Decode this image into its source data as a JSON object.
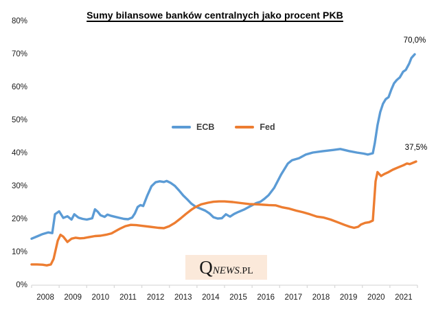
{
  "chart_data": {
    "type": "line",
    "title": "Sumy bilansowe banków centralnych jako procent PKB",
    "xlabel": "",
    "ylabel": "",
    "x_range": [
      2008,
      2022
    ],
    "ylim": [
      0,
      80
    ],
    "grid": false,
    "legend_position": "center-left",
    "axis_color": "#d9d9d9",
    "y_ticks": [
      {
        "value": 0,
        "label": "0%"
      },
      {
        "value": 10,
        "label": "10%"
      },
      {
        "value": 20,
        "label": "20%"
      },
      {
        "value": 30,
        "label": "30%"
      },
      {
        "value": 40,
        "label": "40%"
      },
      {
        "value": 50,
        "label": "50%"
      },
      {
        "value": 60,
        "label": "60%"
      },
      {
        "value": 70,
        "label": "70%"
      },
      {
        "value": 80,
        "label": "80%"
      }
    ],
    "x_tick_labels": [
      "2008",
      "2009",
      "2010",
      "2011",
      "2012",
      "2013",
      "2014",
      "2015",
      "2016",
      "2017",
      "2018",
      "2019",
      "2020",
      "2021"
    ],
    "series": [
      {
        "name": "ECB",
        "color": "#5b9bd5",
        "end_label": "70,0%",
        "points": [
          [
            2008.0,
            14.1
          ],
          [
            2008.2,
            14.8
          ],
          [
            2008.4,
            15.5
          ],
          [
            2008.6,
            16.0
          ],
          [
            2008.75,
            15.8
          ],
          [
            2008.85,
            21.5
          ],
          [
            2009.0,
            22.4
          ],
          [
            2009.15,
            20.4
          ],
          [
            2009.3,
            20.9
          ],
          [
            2009.45,
            19.9
          ],
          [
            2009.55,
            21.5
          ],
          [
            2009.7,
            20.5
          ],
          [
            2009.85,
            20.1
          ],
          [
            2010.0,
            19.9
          ],
          [
            2010.2,
            20.3
          ],
          [
            2010.3,
            23.0
          ],
          [
            2010.4,
            22.3
          ],
          [
            2010.5,
            21.2
          ],
          [
            2010.65,
            20.7
          ],
          [
            2010.75,
            21.4
          ],
          [
            2010.9,
            21.0
          ],
          [
            2011.0,
            20.8
          ],
          [
            2011.2,
            20.4
          ],
          [
            2011.35,
            20.1
          ],
          [
            2011.5,
            20.0
          ],
          [
            2011.65,
            20.5
          ],
          [
            2011.75,
            21.8
          ],
          [
            2011.85,
            23.7
          ],
          [
            2011.95,
            24.3
          ],
          [
            2012.05,
            24.0
          ],
          [
            2012.2,
            27.2
          ],
          [
            2012.35,
            30.0
          ],
          [
            2012.5,
            31.2
          ],
          [
            2012.65,
            31.5
          ],
          [
            2012.8,
            31.3
          ],
          [
            2012.9,
            31.6
          ],
          [
            2013.05,
            31.0
          ],
          [
            2013.2,
            30.1
          ],
          [
            2013.35,
            28.7
          ],
          [
            2013.5,
            27.2
          ],
          [
            2013.65,
            26.0
          ],
          [
            2013.8,
            24.7
          ],
          [
            2013.95,
            23.8
          ],
          [
            2014.1,
            23.3
          ],
          [
            2014.3,
            22.6
          ],
          [
            2014.45,
            21.8
          ],
          [
            2014.6,
            20.6
          ],
          [
            2014.75,
            20.2
          ],
          [
            2014.9,
            20.3
          ],
          [
            2015.05,
            21.5
          ],
          [
            2015.2,
            20.8
          ],
          [
            2015.35,
            21.6
          ],
          [
            2015.5,
            22.2
          ],
          [
            2015.7,
            22.9
          ],
          [
            2015.95,
            24.0
          ],
          [
            2016.15,
            24.9
          ],
          [
            2016.3,
            25.3
          ],
          [
            2016.45,
            26.2
          ],
          [
            2016.6,
            27.3
          ],
          [
            2016.8,
            29.5
          ],
          [
            2017.05,
            33.5
          ],
          [
            2017.3,
            36.9
          ],
          [
            2017.45,
            37.9
          ],
          [
            2017.7,
            38.5
          ],
          [
            2017.95,
            39.6
          ],
          [
            2018.2,
            40.2
          ],
          [
            2018.55,
            40.6
          ],
          [
            2018.95,
            41.0
          ],
          [
            2019.2,
            41.3
          ],
          [
            2019.4,
            40.9
          ],
          [
            2019.55,
            40.6
          ],
          [
            2019.8,
            40.2
          ],
          [
            2020.05,
            39.9
          ],
          [
            2020.2,
            39.6
          ],
          [
            2020.38,
            40.0
          ],
          [
            2020.45,
            43.0
          ],
          [
            2020.55,
            48.5
          ],
          [
            2020.65,
            52.5
          ],
          [
            2020.75,
            55.0
          ],
          [
            2020.85,
            56.4
          ],
          [
            2020.95,
            57.0
          ],
          [
            2021.05,
            59.3
          ],
          [
            2021.15,
            61.2
          ],
          [
            2021.25,
            62.2
          ],
          [
            2021.36,
            63.0
          ],
          [
            2021.48,
            64.7
          ],
          [
            2021.58,
            65.3
          ],
          [
            2021.7,
            67.2
          ],
          [
            2021.78,
            68.9
          ],
          [
            2021.9,
            70.0
          ]
        ]
      },
      {
        "name": "Fed",
        "color": "#ed7d31",
        "end_label": "37,5%",
        "points": [
          [
            2008.0,
            6.3
          ],
          [
            2008.2,
            6.3
          ],
          [
            2008.4,
            6.2
          ],
          [
            2008.55,
            6.0
          ],
          [
            2008.7,
            6.3
          ],
          [
            2008.8,
            8.0
          ],
          [
            2008.95,
            13.5
          ],
          [
            2009.05,
            15.3
          ],
          [
            2009.15,
            14.7
          ],
          [
            2009.3,
            13.1
          ],
          [
            2009.45,
            14.1
          ],
          [
            2009.6,
            14.4
          ],
          [
            2009.75,
            14.2
          ],
          [
            2009.9,
            14.3
          ],
          [
            2010.1,
            14.6
          ],
          [
            2010.3,
            14.9
          ],
          [
            2010.5,
            15.0
          ],
          [
            2010.7,
            15.3
          ],
          [
            2010.9,
            15.7
          ],
          [
            2011.05,
            16.4
          ],
          [
            2011.2,
            17.1
          ],
          [
            2011.4,
            17.9
          ],
          [
            2011.6,
            18.3
          ],
          [
            2011.8,
            18.2
          ],
          [
            2012.0,
            18.0
          ],
          [
            2012.3,
            17.7
          ],
          [
            2012.6,
            17.4
          ],
          [
            2012.8,
            17.3
          ],
          [
            2013.0,
            17.9
          ],
          [
            2013.2,
            18.9
          ],
          [
            2013.4,
            20.2
          ],
          [
            2013.6,
            21.6
          ],
          [
            2013.8,
            22.9
          ],
          [
            2013.95,
            23.7
          ],
          [
            2014.15,
            24.5
          ],
          [
            2014.4,
            25.0
          ],
          [
            2014.6,
            25.3
          ],
          [
            2014.8,
            25.4
          ],
          [
            2015.0,
            25.4
          ],
          [
            2015.3,
            25.2
          ],
          [
            2015.6,
            24.9
          ],
          [
            2015.9,
            24.6
          ],
          [
            2016.2,
            24.5
          ],
          [
            2016.6,
            24.3
          ],
          [
            2016.85,
            24.2
          ],
          [
            2017.1,
            23.6
          ],
          [
            2017.35,
            23.2
          ],
          [
            2017.6,
            22.6
          ],
          [
            2017.85,
            22.1
          ],
          [
            2018.1,
            21.5
          ],
          [
            2018.35,
            20.8
          ],
          [
            2018.6,
            20.5
          ],
          [
            2018.85,
            19.9
          ],
          [
            2019.1,
            19.1
          ],
          [
            2019.35,
            18.3
          ],
          [
            2019.55,
            17.7
          ],
          [
            2019.7,
            17.4
          ],
          [
            2019.85,
            17.7
          ],
          [
            2019.95,
            18.4
          ],
          [
            2020.1,
            18.9
          ],
          [
            2020.25,
            19.1
          ],
          [
            2020.38,
            19.6
          ],
          [
            2020.48,
            31.5
          ],
          [
            2020.55,
            34.3
          ],
          [
            2020.68,
            33.1
          ],
          [
            2020.8,
            33.7
          ],
          [
            2020.95,
            34.3
          ],
          [
            2021.1,
            35.0
          ],
          [
            2021.3,
            35.7
          ],
          [
            2021.5,
            36.4
          ],
          [
            2021.62,
            36.9
          ],
          [
            2021.72,
            36.7
          ],
          [
            2021.95,
            37.5
          ]
        ]
      }
    ],
    "watermark": {
      "parts": [
        "Q",
        "NEWS",
        ".PL"
      ]
    }
  }
}
